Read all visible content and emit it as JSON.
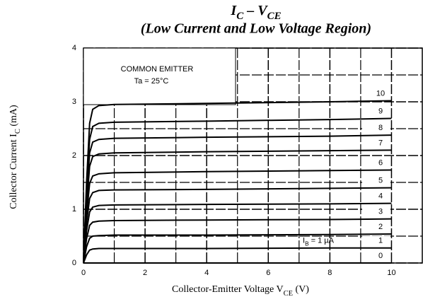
{
  "chart_data": {
    "type": "line",
    "title": [
      "I",
      "C",
      " – V",
      "CE"
    ],
    "subtitle": "(Low Current and Low Voltage Region)",
    "xlabel": [
      "Collector-Emitter Voltage V",
      "CE",
      " (V)"
    ],
    "ylabel": [
      "Collector Current I",
      "C",
      " (mA)"
    ],
    "annotations": [
      "COMMON EMITTER",
      "Ta = 25°C"
    ],
    "curve_label": [
      "I",
      "B",
      " = 1 µA"
    ],
    "x": [
      0,
      0.1,
      0.2,
      0.3,
      0.5,
      1,
      4,
      8,
      10
    ],
    "series": [
      {
        "name": "0",
        "color": "#000000",
        "values": [
          0,
          0,
          0,
          0,
          0,
          0,
          0,
          0,
          0
        ]
      },
      {
        "name": "1",
        "color": "#000000",
        "values": [
          0,
          0.15,
          0.24,
          0.26,
          0.27,
          0.27,
          0.27,
          0.28,
          0.28
        ]
      },
      {
        "name": "2",
        "color": "#000000",
        "values": [
          0,
          0.3,
          0.46,
          0.5,
          0.51,
          0.52,
          0.52,
          0.53,
          0.54
        ]
      },
      {
        "name": "3",
        "color": "#000000",
        "values": [
          0,
          0.45,
          0.7,
          0.76,
          0.78,
          0.79,
          0.8,
          0.81,
          0.82
        ]
      },
      {
        "name": "4",
        "color": "#000000",
        "values": [
          0,
          0.6,
          0.95,
          1.04,
          1.07,
          1.08,
          1.09,
          1.1,
          1.11
        ]
      },
      {
        "name": "5",
        "color": "#000000",
        "values": [
          0,
          0.75,
          1.2,
          1.31,
          1.35,
          1.36,
          1.37,
          1.39,
          1.4
        ]
      },
      {
        "name": "6",
        "color": "#000000",
        "values": [
          0,
          0.9,
          1.48,
          1.62,
          1.66,
          1.68,
          1.7,
          1.72,
          1.73
        ]
      },
      {
        "name": "7",
        "color": "#000000",
        "values": [
          0,
          1.05,
          1.8,
          1.98,
          2.03,
          2.05,
          2.07,
          2.09,
          2.1
        ]
      },
      {
        "name": "8",
        "color": "#000000",
        "values": [
          0,
          1.2,
          2.05,
          2.25,
          2.3,
          2.32,
          2.34,
          2.36,
          2.38
        ]
      },
      {
        "name": "9",
        "color": "#000000",
        "values": [
          0,
          1.35,
          2.3,
          2.54,
          2.6,
          2.62,
          2.64,
          2.67,
          2.69
        ]
      },
      {
        "name": "10",
        "color": "#000000",
        "values": [
          0,
          1.5,
          2.6,
          2.86,
          2.93,
          2.95,
          2.97,
          3.0,
          3.02
        ]
      }
    ],
    "xlim": [
      0,
      11
    ],
    "ylim": [
      0,
      4
    ],
    "xticks": [
      0,
      2,
      4,
      6,
      8,
      10
    ],
    "yticks": [
      0,
      1,
      2,
      3,
      4
    ],
    "xminorticks": [
      1,
      3,
      5,
      7,
      9
    ],
    "yminorticks": [
      0.5,
      1.5,
      2.5,
      3.5
    ],
    "grid": true
  }
}
